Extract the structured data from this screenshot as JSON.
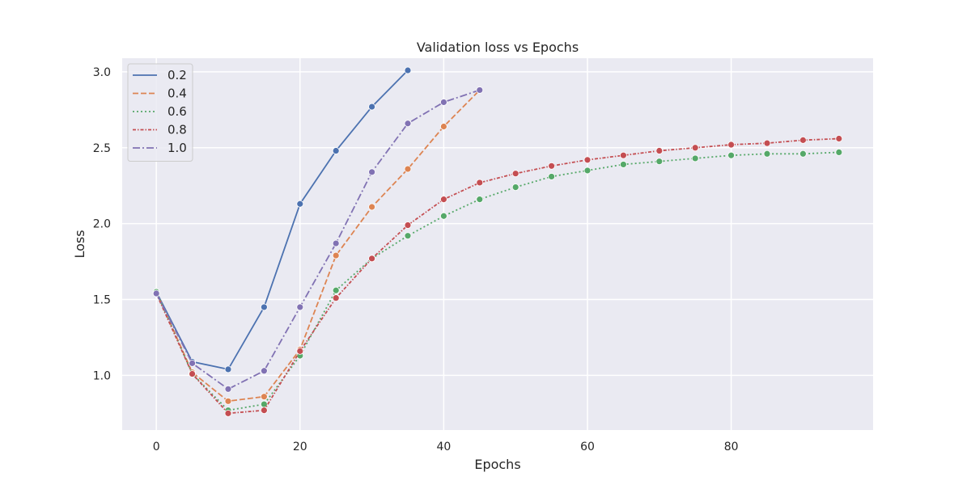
{
  "chart_data": {
    "type": "line",
    "title": "Validation loss vs Epochs",
    "xlabel": "Epochs",
    "ylabel": "Loss",
    "xlim": [
      -4.75,
      99.75
    ],
    "ylim": [
      0.64,
      3.09
    ],
    "xticks": [
      0,
      20,
      40,
      60,
      80
    ],
    "yticks": [
      1.0,
      1.5,
      2.0,
      2.5,
      3.0
    ],
    "ytick_labels": [
      "1.0",
      "1.5",
      "2.0",
      "2.5",
      "3.0"
    ],
    "grid": true,
    "legend_position": "top-left",
    "background_color": "#eaeaf2",
    "series": [
      {
        "name": "0.2",
        "color": "#4c72b0",
        "dash": "solid",
        "x": [
          0,
          5,
          10,
          15,
          20,
          25,
          30,
          35
        ],
        "y": [
          1.55,
          1.09,
          1.04,
          1.45,
          2.13,
          2.48,
          2.77,
          3.01
        ]
      },
      {
        "name": "0.4",
        "color": "#dd8452",
        "dash": "dashed",
        "x": [
          0,
          5,
          10,
          15,
          20,
          25,
          30,
          35,
          40,
          45
        ],
        "y": [
          1.55,
          1.02,
          0.83,
          0.86,
          1.17,
          1.79,
          2.11,
          2.36,
          2.64,
          2.88
        ]
      },
      {
        "name": "0.6",
        "color": "#55a868",
        "dash": "dotted",
        "x": [
          0,
          5,
          10,
          15,
          20,
          25,
          30,
          35,
          40,
          45,
          50,
          55,
          60,
          65,
          70,
          75,
          80,
          85,
          90,
          95
        ],
        "y": [
          1.55,
          1.01,
          0.77,
          0.81,
          1.13,
          1.56,
          1.77,
          1.92,
          2.05,
          2.16,
          2.24,
          2.31,
          2.35,
          2.39,
          2.41,
          2.43,
          2.45,
          2.46,
          2.46,
          2.47
        ]
      },
      {
        "name": "0.8",
        "color": "#c44e52",
        "dash": "dashdot-dense",
        "x": [
          0,
          5,
          10,
          15,
          20,
          25,
          30,
          35,
          40,
          45,
          50,
          55,
          60,
          65,
          70,
          75,
          80,
          85,
          90,
          95
        ],
        "y": [
          1.54,
          1.01,
          0.75,
          0.77,
          1.16,
          1.51,
          1.77,
          1.99,
          2.16,
          2.27,
          2.33,
          2.38,
          2.42,
          2.45,
          2.48,
          2.5,
          2.52,
          2.53,
          2.55,
          2.56
        ]
      },
      {
        "name": "1.0",
        "color": "#8172b3",
        "dash": "dashdot",
        "x": [
          0,
          5,
          10,
          15,
          20,
          25,
          30,
          35,
          40,
          45
        ],
        "y": [
          1.54,
          1.08,
          0.91,
          1.03,
          1.45,
          1.87,
          2.34,
          2.66,
          2.8,
          2.88
        ]
      }
    ]
  }
}
